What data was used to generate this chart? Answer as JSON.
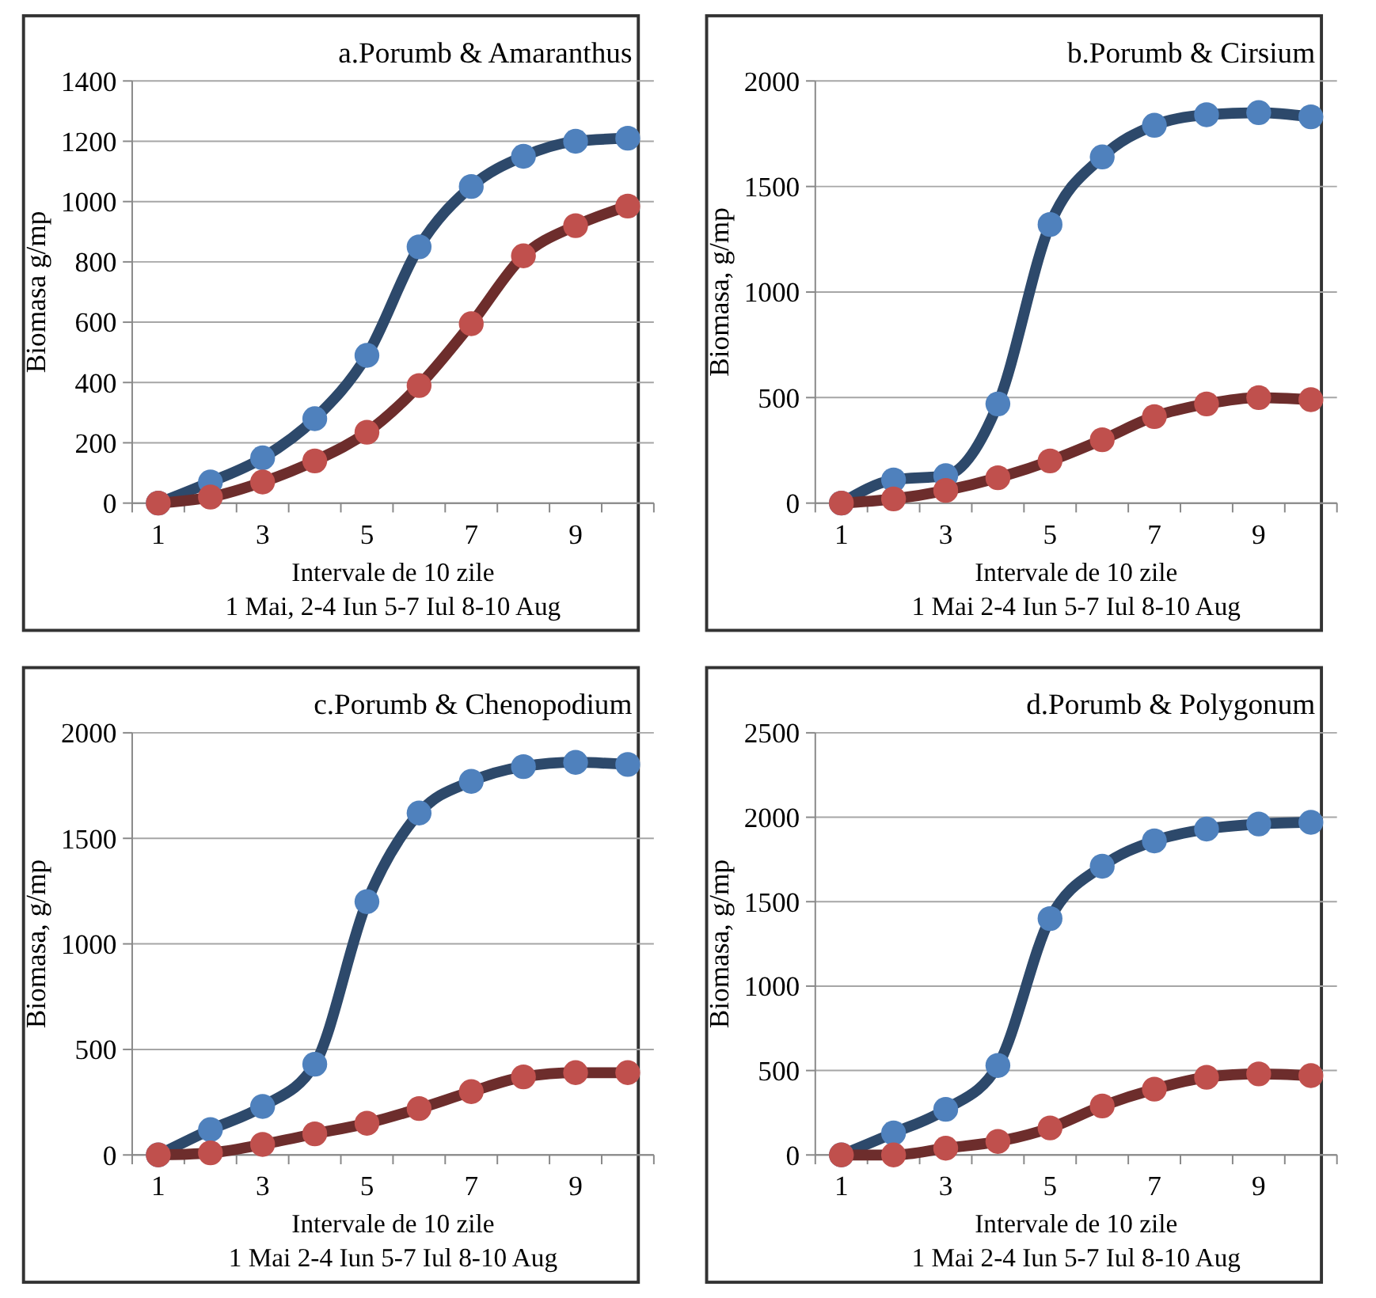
{
  "chart_data": [
    {
      "type": "line",
      "title": "a.Porumb & Amaranthus",
      "xlabel": "Intervale de 10 zile",
      "ylabel": "Biomasa g/mp",
      "annotations": [
        "1 Mai, 2-4 Iun 5-7 Iul 8-10 Aug"
      ],
      "categories": [
        "1",
        null,
        "3",
        null,
        "5",
        null,
        "7",
        null,
        "9",
        null
      ],
      "ylim": [
        0,
        1400
      ],
      "yticks": [
        0,
        200,
        400,
        600,
        800,
        1000,
        1200,
        1400
      ],
      "grid": "y",
      "marker": "circle",
      "series": [
        {
          "color": "#4f81bd",
          "values": [
            0,
            70,
            150,
            280,
            490,
            850,
            1050,
            1150,
            1200,
            1210
          ]
        },
        {
          "color": "#c0504d",
          "values": [
            0,
            20,
            70,
            140,
            235,
            390,
            595,
            820,
            920,
            985
          ]
        }
      ]
    },
    {
      "type": "line",
      "title": "b.Porumb & Cirsium",
      "xlabel": "Intervale de 10 zile",
      "ylabel": "Biomasa, g/mp",
      "annotations": [
        "1 Mai 2-4 Iun 5-7 Iul 8-10 Aug"
      ],
      "categories": [
        "1",
        null,
        "3",
        null,
        "5",
        null,
        "7",
        null,
        "9",
        null
      ],
      "ylim": [
        0,
        2000
      ],
      "yticks": [
        0,
        500,
        1000,
        1500,
        2000
      ],
      "grid": "y",
      "marker": "circle",
      "series": [
        {
          "color": "#4f81bd",
          "values": [
            0,
            110,
            130,
            470,
            1320,
            1640,
            1790,
            1840,
            1850,
            1830
          ]
        },
        {
          "color": "#c0504d",
          "values": [
            0,
            20,
            60,
            120,
            200,
            300,
            410,
            470,
            500,
            490
          ]
        }
      ]
    },
    {
      "type": "line",
      "title": "c.Porumb & Chenopodium",
      "xlabel": "Intervale de 10 zile",
      "ylabel": "Biomasa, g/mp",
      "annotations": [
        "1 Mai 2-4 Iun 5-7 Iul 8-10 Aug"
      ],
      "categories": [
        "1",
        null,
        "3",
        null,
        "5",
        null,
        "7",
        null,
        "9",
        null
      ],
      "ylim": [
        0,
        2000
      ],
      "yticks": [
        0,
        500,
        1000,
        1500,
        2000
      ],
      "grid": "y",
      "marker": "circle",
      "series": [
        {
          "color": "#4f81bd",
          "values": [
            0,
            120,
            230,
            430,
            1200,
            1620,
            1770,
            1840,
            1860,
            1850
          ]
        },
        {
          "color": "#c0504d",
          "values": [
            0,
            10,
            50,
            100,
            150,
            220,
            300,
            370,
            390,
            390
          ]
        }
      ]
    },
    {
      "type": "line",
      "title": "d.Porumb & Polygonum",
      "xlabel": "Intervale de 10 zile",
      "ylabel": "Biomasa, g/mp",
      "annotations": [
        "1 Mai 2-4 Iun 5-7 Iul 8-10 Aug"
      ],
      "categories": [
        "1",
        null,
        "3",
        null,
        "5",
        null,
        "7",
        null,
        "9",
        null
      ],
      "ylim": [
        0,
        2500
      ],
      "yticks": [
        0,
        500,
        1000,
        1500,
        2000,
        2500
      ],
      "grid": "y",
      "marker": "circle",
      "series": [
        {
          "color": "#4f81bd",
          "values": [
            0,
            130,
            270,
            530,
            1400,
            1710,
            1860,
            1930,
            1960,
            1970
          ]
        },
        {
          "color": "#c0504d",
          "values": [
            0,
            0,
            40,
            80,
            160,
            290,
            390,
            460,
            480,
            470
          ]
        }
      ]
    }
  ]
}
